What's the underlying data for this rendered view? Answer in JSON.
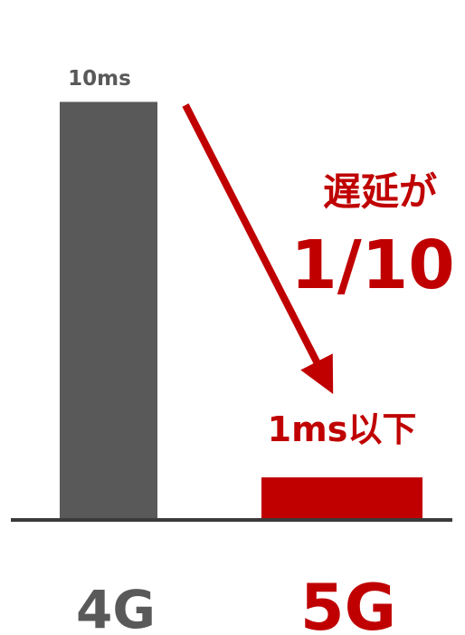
{
  "chart_data": {
    "type": "bar",
    "categories": [
      "4G",
      "5G"
    ],
    "values": [
      10,
      1
    ],
    "value_labels": [
      "10ms",
      "1ms以下"
    ],
    "unit": "ms",
    "title": "",
    "xlabel": "",
    "ylabel": "",
    "ylim": [
      0,
      11.4
    ],
    "grid": false,
    "legend": "none",
    "annotation": {
      "line1": "遅延が",
      "line2": "1/10",
      "from": "4G",
      "to": "5G"
    }
  },
  "colors": {
    "bar_4g": "#595959",
    "bar_5g": "#c00000",
    "axis": "#3a3a3a",
    "label_4g": "#595959",
    "label_5g": "#c00000",
    "value_4g": "#595959",
    "accent": "#c00000"
  }
}
